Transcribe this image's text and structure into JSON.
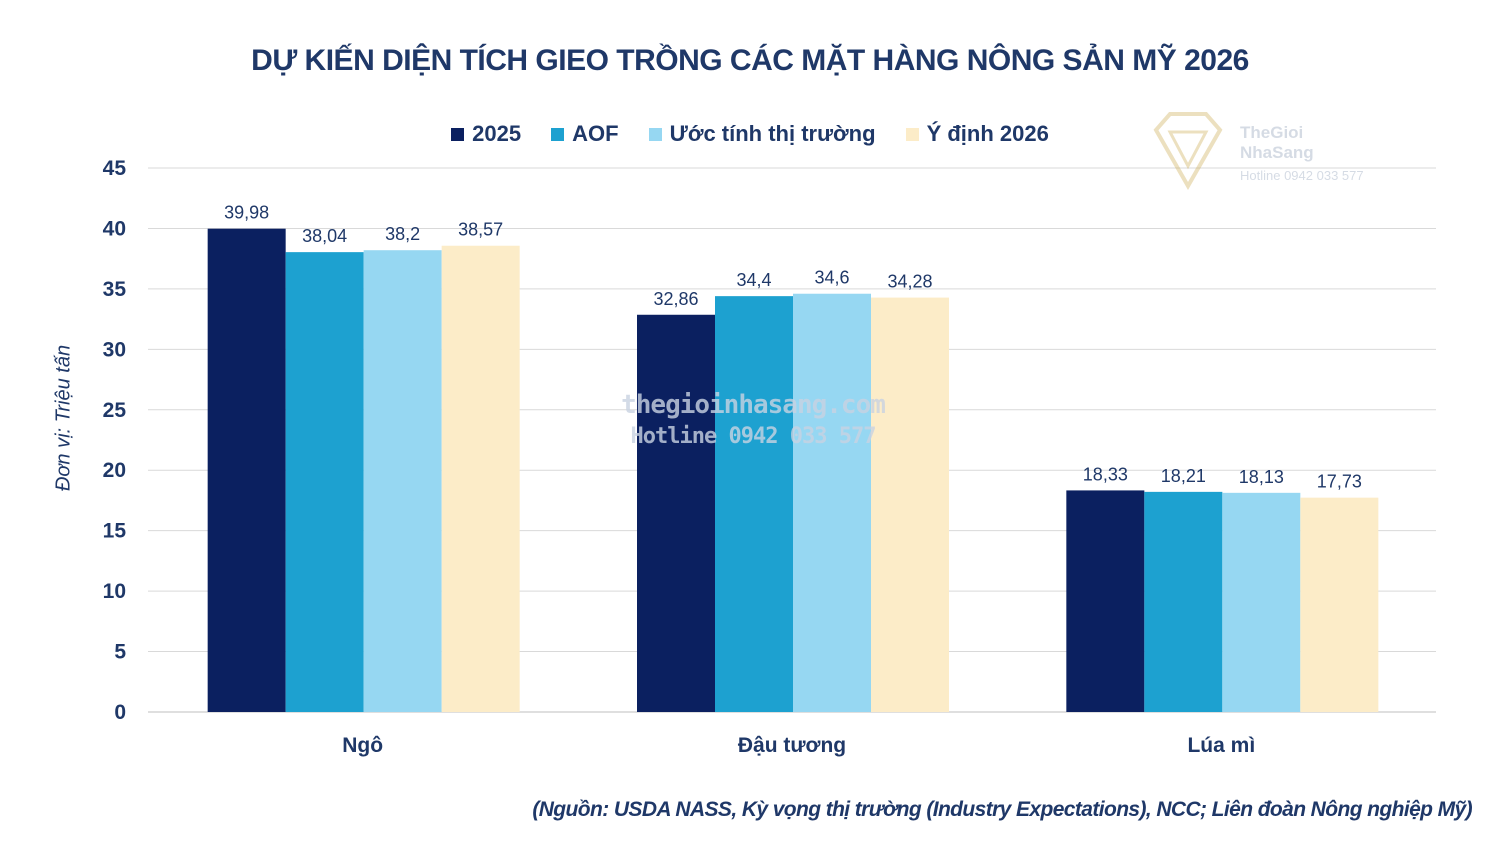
{
  "colors": {
    "text": "#1f3868",
    "grid": "#d9d9d9",
    "series": [
      "#0b2060",
      "#1da1d0",
      "#96d7f2",
      "#fcecc8"
    ]
  },
  "chart_data": {
    "type": "bar",
    "title": "DỰ KIẾN DIỆN TÍCH GIEO TRỒNG CÁC MẶT HÀNG NÔNG SẢN MỸ 2026",
    "xlabel": "",
    "ylabel": "Đơn vị: Triệu tấn",
    "ylim": [
      0,
      45
    ],
    "yticks": [
      0,
      5,
      10,
      15,
      20,
      25,
      30,
      35,
      40,
      45
    ],
    "grid": true,
    "legend_position": "top",
    "categories": [
      "Ngô",
      "Đậu tương",
      "Lúa mì"
    ],
    "series": [
      {
        "name": "2025",
        "values": [
          39.98,
          32.86,
          18.33
        ],
        "labels": [
          "39,98",
          "32,86",
          "18,33"
        ]
      },
      {
        "name": "AOF",
        "values": [
          38.04,
          34.4,
          18.21
        ],
        "labels": [
          "38,04",
          "34,4",
          "18,21"
        ]
      },
      {
        "name": "Ước tính thị trường",
        "values": [
          38.2,
          34.6,
          18.13
        ],
        "labels": [
          "38,2",
          "34,6",
          "18,13"
        ]
      },
      {
        "name": "Ý định 2026",
        "values": [
          38.57,
          34.28,
          17.73
        ],
        "labels": [
          "38,57",
          "34,28",
          "17,73"
        ]
      }
    ],
    "source_note": "(Nguồn: USDA NASS, Kỳ vọng thị trường (Industry Expectations), NCC; Liên đoàn Nông nghiệp Mỹ)"
  },
  "watermark": {
    "logo_line1": "TheGioi",
    "logo_line2": "NhaSang",
    "logo_hotline": "Hotline 0942 033 577",
    "center_line1": "thegioinhasang.com",
    "center_line2": "Hotline 0942 033 577"
  }
}
